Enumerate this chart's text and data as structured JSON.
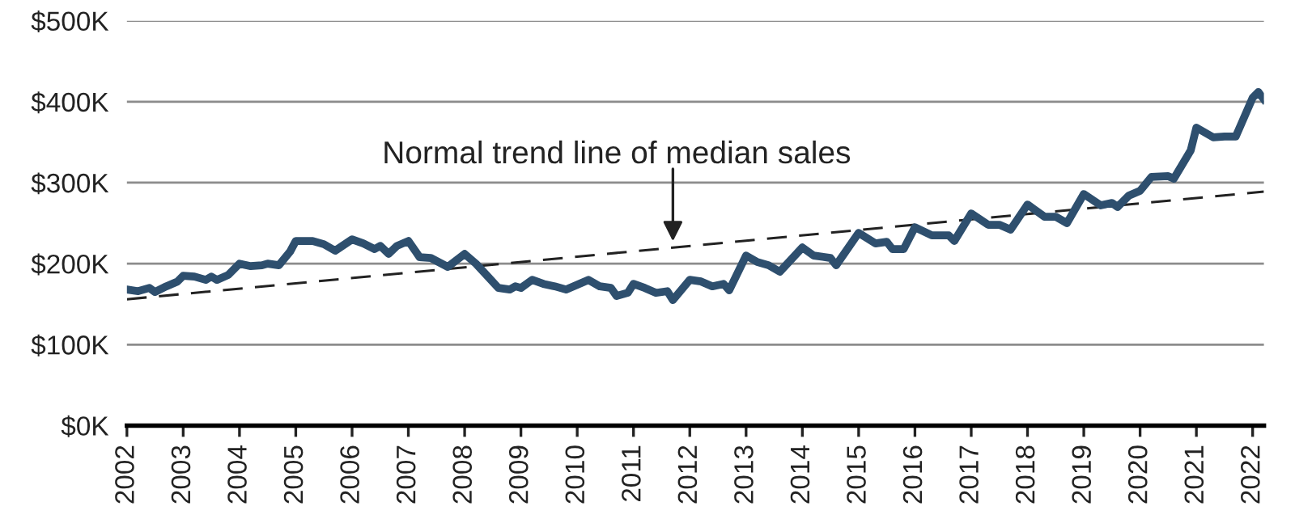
{
  "chart_data": {
    "type": "line",
    "xlim": [
      2002,
      2022.2
    ],
    "xticks": [
      2002,
      2003,
      2004,
      2005,
      2006,
      2007,
      2008,
      2009,
      2010,
      2011,
      2012,
      2013,
      2014,
      2015,
      2016,
      2017,
      2018,
      2019,
      2020,
      2021,
      2022
    ],
    "ylim": [
      0,
      500
    ],
    "yticks": [
      {
        "value": 0,
        "label": "$0K"
      },
      {
        "value": 100,
        "label": "$100K"
      },
      {
        "value": 200,
        "label": "$200K"
      },
      {
        "value": 300,
        "label": "$300K"
      },
      {
        "value": 400,
        "label": "$400K"
      },
      {
        "value": 500,
        "label": "$500K"
      }
    ],
    "grid": "y",
    "legend": false,
    "marker": "none",
    "series": [
      {
        "color": "#2e4f6e",
        "line_style": "solid",
        "x": [
          2002.0,
          2002.2,
          2002.4,
          2002.5,
          2002.7,
          2002.9,
          2003.0,
          2003.2,
          2003.4,
          2003.5,
          2003.6,
          2003.8,
          2004.0,
          2004.2,
          2004.4,
          2004.5,
          2004.7,
          2004.9,
          2005.0,
          2005.3,
          2005.5,
          2005.7,
          2006.0,
          2006.2,
          2006.4,
          2006.5,
          2006.65,
          2006.8,
          2007.0,
          2007.2,
          2007.4,
          2007.7,
          2008.0,
          2008.2,
          2008.4,
          2008.6,
          2008.8,
          2008.9,
          2009.0,
          2009.2,
          2009.4,
          2009.6,
          2009.8,
          2010.0,
          2010.2,
          2010.4,
          2010.6,
          2010.7,
          2010.9,
          2011.0,
          2011.2,
          2011.4,
          2011.6,
          2011.7,
          2012.0,
          2012.2,
          2012.4,
          2012.6,
          2012.7,
          2013.0,
          2013.2,
          2013.4,
          2013.6,
          2014.0,
          2014.2,
          2014.5,
          2014.6,
          2015.0,
          2015.3,
          2015.5,
          2015.6,
          2015.8,
          2016.0,
          2016.3,
          2016.6,
          2016.7,
          2017.0,
          2017.3,
          2017.5,
          2017.7,
          2018.0,
          2018.3,
          2018.5,
          2018.7,
          2019.0,
          2019.3,
          2019.5,
          2019.6,
          2019.8,
          2020.0,
          2020.2,
          2020.5,
          2020.6,
          2020.9,
          2021.0,
          2021.3,
          2021.5,
          2021.7,
          2022.0,
          2022.1,
          2022.2
        ],
        "values": [
          168,
          166,
          170,
          165,
          172,
          178,
          185,
          184,
          180,
          184,
          180,
          186,
          200,
          197,
          198,
          200,
          198,
          215,
          228,
          228,
          224,
          216,
          230,
          225,
          218,
          222,
          212,
          222,
          228,
          208,
          207,
          196,
          212,
          200,
          185,
          170,
          168,
          172,
          170,
          180,
          175,
          172,
          168,
          174,
          180,
          172,
          170,
          160,
          164,
          175,
          170,
          164,
          166,
          155,
          180,
          178,
          172,
          175,
          167,
          210,
          202,
          198,
          190,
          220,
          210,
          207,
          198,
          238,
          225,
          227,
          218,
          218,
          245,
          235,
          235,
          228,
          262,
          248,
          248,
          242,
          273,
          258,
          258,
          250,
          286,
          272,
          275,
          270,
          284,
          290,
          307,
          308,
          305,
          340,
          368,
          356,
          357,
          357,
          405,
          412,
          403
        ]
      },
      {
        "color": "#222222",
        "line_style": "dashed",
        "x": [
          2002,
          2022.2
        ],
        "values": [
          156,
          289
        ]
      }
    ],
    "annotations": [
      {
        "text": "Normal trend line of median sales",
        "x": 2011.7,
        "y": 222
      }
    ]
  }
}
